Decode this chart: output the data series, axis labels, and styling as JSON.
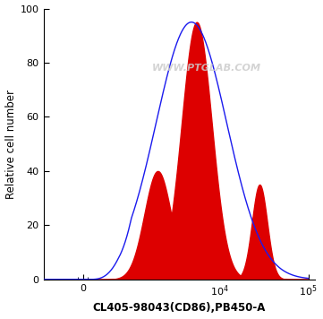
{
  "title": "",
  "xlabel": "CL405-98043(CD86),PB450-A",
  "ylabel": "Relative cell number",
  "ylim": [
    0,
    100
  ],
  "yticks": [
    0,
    20,
    40,
    60,
    80,
    100
  ],
  "watermark": "WWW.PTGLAB.COM",
  "background_color": "#ffffff",
  "blue_color": "#1a1aee",
  "red_color": "#dd0000",
  "figsize": [
    3.61,
    3.56
  ],
  "dpi": 100,
  "linthresh": 700,
  "linscale": 0.35
}
